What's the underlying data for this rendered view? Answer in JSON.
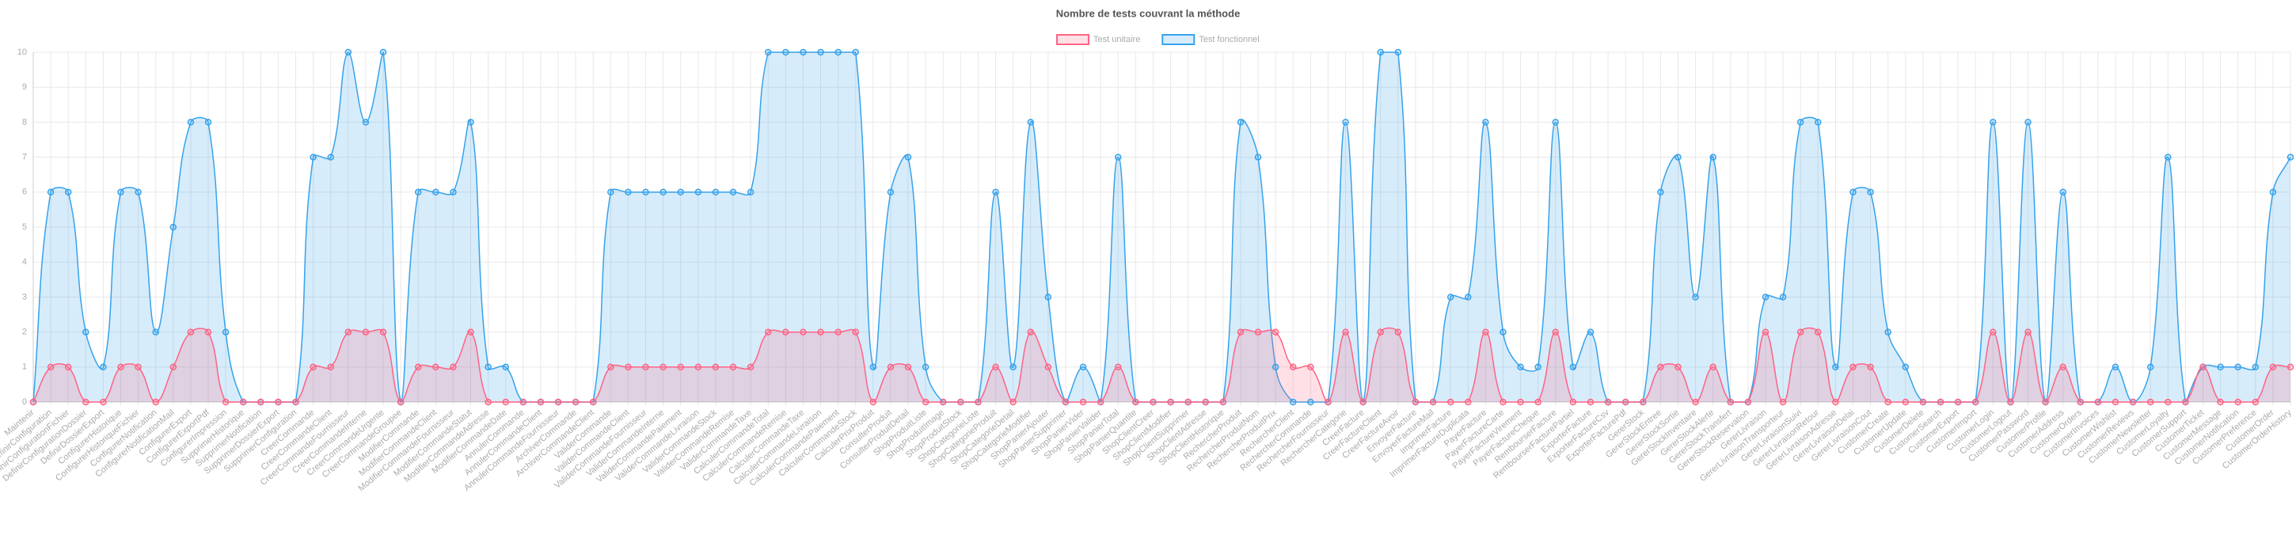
{
  "chart_data": {
    "type": "line",
    "title": "Nombre de tests couvrant la méthode",
    "categories": [
      "Maintenir",
      "DefinirConfiguration",
      "DefinirConfigurationFichier",
      "DefinirConfigurationDossier",
      "DefinirDossierExport",
      "ConfigurerHistorique",
      "ConfigurerHistoriqueFichier",
      "ConfigurerNotification",
      "ConfigurerNotificationMail",
      "ConfigurerExport",
      "ConfigurerExportPdf",
      "ConfigurerImpression",
      "SupprimerHistorique",
      "SupprimerNotification",
      "SupprimerDossierExport",
      "SupprimerConfiguration",
      "CreerCommande",
      "CreerCommandeClient",
      "CreerCommandeFournisseur",
      "CreerCommandeInterne",
      "CreerCommandeUrgente",
      "CreerCommandeGroupee",
      "ModifierCommande",
      "ModifierCommandeClient",
      "ModifierCommandeFournisseur",
      "ModifierCommandeStatut",
      "ModifierCommandeAdresse",
      "ModifierCommandeDate",
      "AnnulerCommande",
      "AnnulerCommandeClient",
      "AnnulerCommandeFournisseur",
      "ArchiverCommande",
      "ArchiverCommandeClient",
      "ValiderCommande",
      "ValiderCommandeClient",
      "ValiderCommandeFournisseur",
      "ValiderCommandeInterne",
      "ValiderCommandePaiement",
      "ValiderCommandeLivraison",
      "ValiderCommandeStock",
      "ValiderCommandeRemise",
      "ValiderCommandeTaxe",
      "CalculerCommandeTotal",
      "CalculerCommandeRemise",
      "CalculerCommandeTaxe",
      "CalculerCommandeLivraison",
      "CalculerCommandePaiement",
      "CalculerCommandeStock",
      "CalculerPrixProduit",
      "ConsulterProduit",
      "ConsulterProduitDetail",
      "ShopProduitListe",
      "ShopProduitImage",
      "ShopProduitStock",
      "ShopCategorieListe",
      "ShopCategorieProduit",
      "ShopCategorieDetail",
      "ShopCategorieModifier",
      "ShopPanierAjouter",
      "ShopPanierSupprimer",
      "ShopPanierVider",
      "ShopPanierValider",
      "ShopPanierTotal",
      "ShopPanierQuantite",
      "ShopClientCreer",
      "ShopClientModifier",
      "ShopClientSupprimer",
      "ShopClientAdresse",
      "ShopClientHistorique",
      "RechercherProduit",
      "RechercherProduitNom",
      "RechercherProduitPrix",
      "RechercherClient",
      "RechercherCommande",
      "RechercherFournisseur",
      "RechercherCategorie",
      "CreerFacture",
      "CreerFactureClient",
      "CreerFactureAvoir",
      "EnvoyerFacture",
      "EnvoyerFactureMail",
      "ImprimerFacture",
      "ImprimerFactureDuplicata",
      "PayerFacture",
      "PayerFactureCarte",
      "PayerFactureVirement",
      "PayerFactureCheque",
      "RembourserFacture",
      "RembourserFacturePartiel",
      "ExporterFacture",
      "ExporterFactureCsv",
      "ExporterFacturePdf",
      "GererStock",
      "GererStockEntree",
      "GererStockSortie",
      "GererStockInventaire",
      "GererStockAlerte",
      "GererStockTransfert",
      "GererStockReservation",
      "GererLivraison",
      "GererLivraisonTransporteur",
      "GererLivraisonSuivi",
      "GererLivraisonRetour",
      "GererLivraisonAdresse",
      "GererLivraisonDelai",
      "GererLivraisonCout",
      "CustomerCreate",
      "CustomerUpdate",
      "CustomerDelete",
      "CustomerSearch",
      "CustomerExport",
      "CustomerImport",
      "CustomerLogin",
      "CustomerLogout",
      "CustomerPassword",
      "CustomerProfile",
      "CustomerAddress",
      "CustomerOrders",
      "CustomerInvoices",
      "CustomerWishlist",
      "CustomerReviews",
      "CustomerNewsletter",
      "CustomerLoyalty",
      "CustomerSupport",
      "CustomerTicket",
      "CustomerMessage",
      "CustomerNotification",
      "CustomerPreference",
      "CustomerOrder",
      "CustomerOrderHistory"
    ],
    "series": [
      {
        "name": "Test fonctionnel",
        "color": "#36a2eb",
        "values": [
          0,
          6,
          6,
          2,
          1,
          6,
          6,
          2,
          5,
          8,
          8,
          2,
          0,
          0,
          0,
          0,
          7,
          7,
          10,
          8,
          10,
          0,
          6,
          6,
          6,
          8,
          1,
          1,
          0,
          0,
          0,
          0,
          0,
          6,
          6,
          6,
          6,
          6,
          6,
          6,
          6,
          6,
          10,
          10,
          10,
          10,
          10,
          10,
          1,
          6,
          7,
          1,
          0,
          0,
          0,
          6,
          1,
          8,
          3,
          0,
          1,
          0,
          7,
          0,
          0,
          0,
          0,
          0,
          0,
          8,
          7,
          1,
          0,
          0,
          0,
          8,
          0,
          10,
          10,
          0,
          0,
          3,
          3,
          8,
          2,
          1,
          1,
          8,
          1,
          2,
          0,
          0,
          0,
          6,
          7,
          3,
          7,
          0,
          0,
          3,
          3,
          8,
          8,
          1,
          6,
          6,
          2,
          1,
          0,
          0,
          0,
          0,
          8,
          0,
          8,
          0,
          6,
          0,
          0,
          1,
          0,
          1,
          7,
          0,
          1,
          1,
          1,
          1,
          6,
          7
        ]
      },
      {
        "name": "Test unitaire",
        "color": "#ff6384",
        "values": [
          0,
          1,
          1,
          0,
          0,
          1,
          1,
          0,
          1,
          2,
          2,
          0,
          0,
          0,
          0,
          0,
          1,
          1,
          2,
          2,
          2,
          0,
          1,
          1,
          1,
          2,
          0,
          0,
          0,
          0,
          0,
          0,
          0,
          1,
          1,
          1,
          1,
          1,
          1,
          1,
          1,
          1,
          2,
          2,
          2,
          2,
          2,
          2,
          0,
          1,
          1,
          0,
          0,
          0,
          0,
          1,
          0,
          2,
          1,
          0,
          0,
          0,
          1,
          0,
          0,
          0,
          0,
          0,
          0,
          2,
          2,
          2,
          1,
          1,
          0,
          2,
          0,
          2,
          2,
          0,
          0,
          0,
          0,
          2,
          0,
          0,
          0,
          2,
          0,
          0,
          0,
          0,
          0,
          1,
          1,
          0,
          1,
          0,
          0,
          2,
          0,
          2,
          2,
          0,
          1,
          1,
          0,
          0,
          0,
          0,
          0,
          0,
          2,
          0,
          2,
          0,
          1,
          0,
          0,
          0,
          0,
          0,
          0,
          0,
          1,
          0,
          0,
          0,
          1,
          1
        ]
      }
    ],
    "ylim": [
      0,
      10
    ],
    "yticks": [
      0,
      1,
      2,
      3,
      4,
      5,
      6,
      7,
      8,
      9,
      10
    ],
    "grid": true
  }
}
